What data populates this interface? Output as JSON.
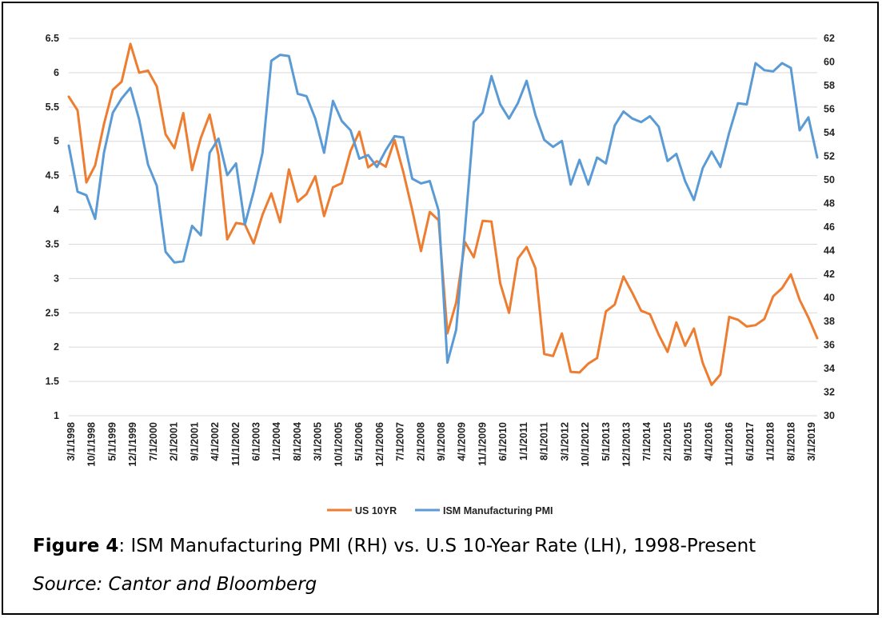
{
  "chart_data": {
    "type": "line",
    "x_tick_labels": [
      "3/1/1998",
      "10/1/1998",
      "5/1/1999",
      "12/1/1999",
      "7/1/2000",
      "2/1/2001",
      "9/1/2001",
      "4/1/2002",
      "11/1/2002",
      "6/1/2003",
      "1/1/2004",
      "8/1/2004",
      "3/1/2005",
      "10/1/2005",
      "5/1/2006",
      "12/1/2006",
      "7/1/2007",
      "2/1/2008",
      "9/1/2008",
      "4/1/2009",
      "11/1/2009",
      "6/1/2010",
      "1/1/2011",
      "8/1/2011",
      "3/1/2012",
      "10/1/2012",
      "5/1/2013",
      "12/1/2013",
      "7/1/2014",
      "2/1/2015",
      "9/1/2015",
      "4/1/2016",
      "11/1/2016",
      "6/1/2017",
      "1/1/2018",
      "8/1/2018",
      "3/1/2019"
    ],
    "y_left": {
      "min": 1,
      "max": 6.5,
      "ticks": [
        "1",
        "1.5",
        "2",
        "2.5",
        "3",
        "3.5",
        "4",
        "4.5",
        "5",
        "5.5",
        "6",
        "6.5"
      ]
    },
    "y_right": {
      "min": 30,
      "max": 62,
      "ticks": [
        "30",
        "32",
        "34",
        "36",
        "38",
        "40",
        "42",
        "44",
        "46",
        "48",
        "50",
        "52",
        "54",
        "56",
        "58",
        "60",
        "62"
      ]
    },
    "grid": true,
    "legend_position": "bottom",
    "series": [
      {
        "name": "US 10YR",
        "axis": "left",
        "color": "#ED7D31",
        "values": [
          5.65,
          5.45,
          4.4,
          4.65,
          5.25,
          5.75,
          5.87,
          6.42,
          6.0,
          6.03,
          5.8,
          5.1,
          4.9,
          5.41,
          4.58,
          5.05,
          5.39,
          4.8,
          3.57,
          3.81,
          3.79,
          3.51,
          3.93,
          4.24,
          3.82,
          4.59,
          4.12,
          4.23,
          4.49,
          3.91,
          4.33,
          4.39,
          4.86,
          5.14,
          4.62,
          4.71,
          4.63,
          5.02,
          4.55,
          4.0,
          3.4,
          3.97,
          3.85,
          2.2,
          2.65,
          3.53,
          3.31,
          3.84,
          3.83,
          2.93,
          2.5,
          3.29,
          3.46,
          3.15,
          1.9,
          1.87,
          2.2,
          1.64,
          1.63,
          1.76,
          1.84,
          2.52,
          2.62,
          3.03,
          2.79,
          2.53,
          2.48,
          2.18,
          1.93,
          2.36,
          2.02,
          2.27,
          1.77,
          1.45,
          1.6,
          2.44,
          2.4,
          2.3,
          2.32,
          2.41,
          2.74,
          2.86,
          3.06,
          2.69,
          2.43,
          2.13
        ]
      },
      {
        "name": "ISM Manufacturing PMI",
        "axis": "right",
        "color": "#5B9BD5",
        "values": [
          52.9,
          49.0,
          48.7,
          46.7,
          52.3,
          55.7,
          56.9,
          57.8,
          55.1,
          51.3,
          49.5,
          43.9,
          43.0,
          43.1,
          46.1,
          45.3,
          52.3,
          53.5,
          50.4,
          51.4,
          46.2,
          49.0,
          52.3,
          60.1,
          60.6,
          60.5,
          57.3,
          57.1,
          55.2,
          52.3,
          56.7,
          55.0,
          54.2,
          51.8,
          52.1,
          51.1,
          52.5,
          53.7,
          53.6,
          50.1,
          49.7,
          49.9,
          47.4,
          34.5,
          37.3,
          45.8,
          54.9,
          55.7,
          58.8,
          56.4,
          55.2,
          56.5,
          58.4,
          55.5,
          53.4,
          52.8,
          53.3,
          49.6,
          51.7,
          49.6,
          51.9,
          51.4,
          54.6,
          55.8,
          55.2,
          54.9,
          55.4,
          54.5,
          51.6,
          52.2,
          49.9,
          48.3,
          51.0,
          52.4,
          51.1,
          54.0,
          56.5,
          56.4,
          59.9,
          59.3,
          59.2,
          59.9,
          59.5,
          54.2,
          55.3,
          51.9
        ]
      }
    ]
  },
  "caption": {
    "label": "Figure 4",
    "text": ": ISM Manufacturing PMI (RH) vs. U.S 10-Year Rate (LH), 1998-Present"
  },
  "source": "Source: Cantor and Bloomberg"
}
